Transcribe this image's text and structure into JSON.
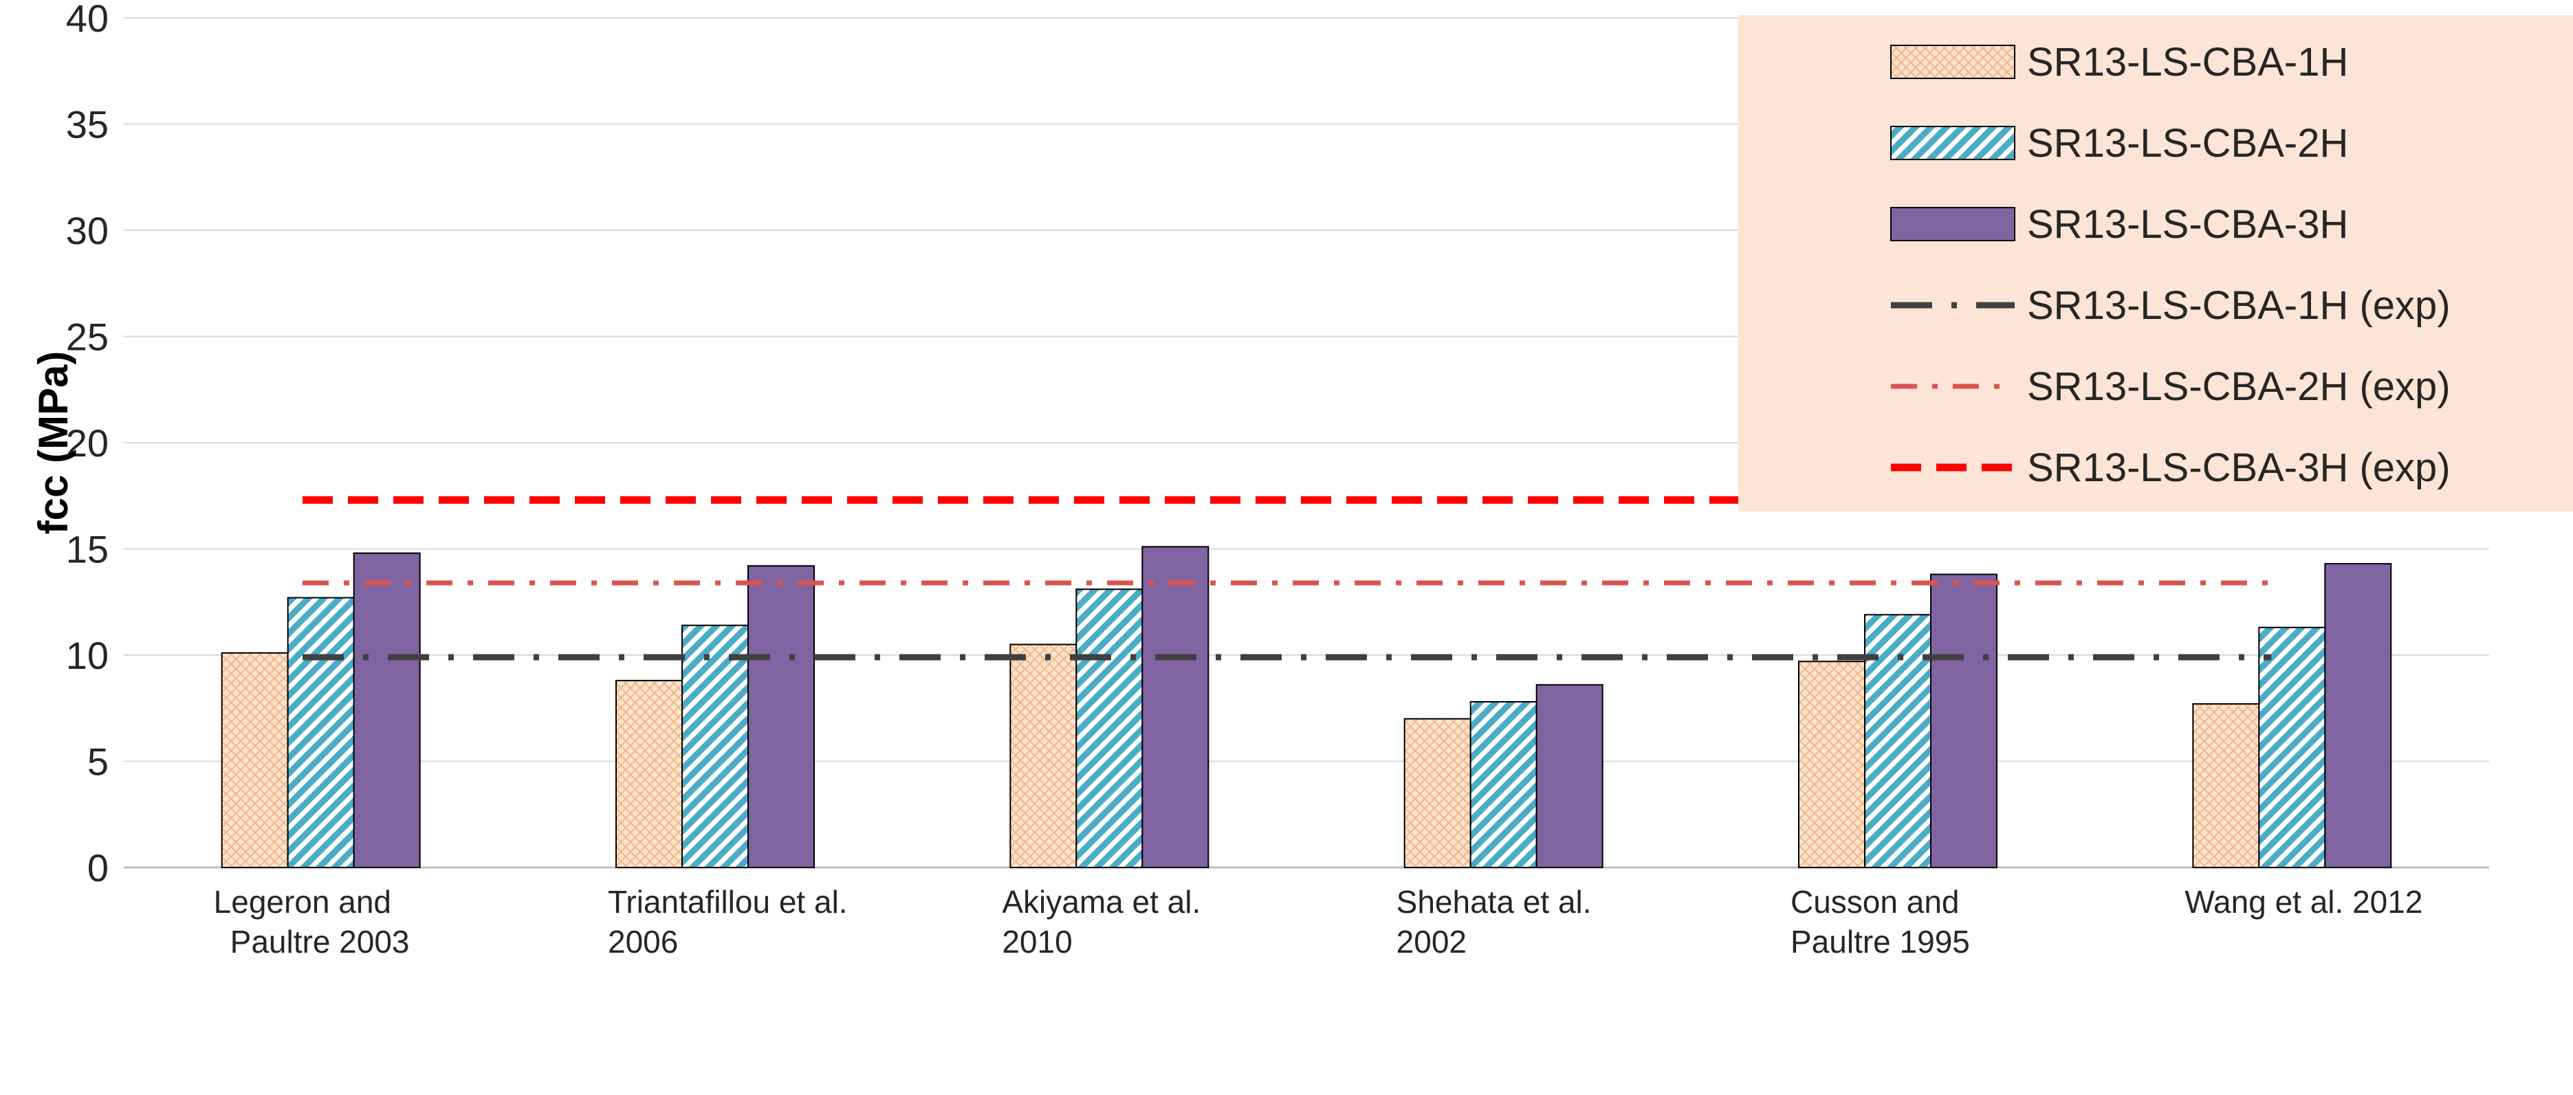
{
  "chart_data": {
    "type": "bar",
    "title": "",
    "xlabel": "",
    "ylabel": "fcc  (MPa)",
    "ylim": [
      0,
      40
    ],
    "yticks": [
      "0",
      "5",
      "10",
      "15",
      "20",
      "25",
      "30",
      "35",
      "40"
    ],
    "grid": true,
    "legend_position": "top-right",
    "categories": [
      [
        "Legeron and",
        "Paultre 2003"
      ],
      [
        "Triantafillou et al.",
        "2006"
      ],
      [
        "Akiyama et al.",
        "2010"
      ],
      [
        "Shehata et al.",
        "2002"
      ],
      [
        "Cusson and",
        "Paultre 1995"
      ],
      [
        "Wang et al. 2012"
      ]
    ],
    "series": [
      {
        "name": "SR13-LS-CBA-1H",
        "values": [
          10.1,
          8.8,
          10.5,
          7.0,
          9.7,
          7.7
        ],
        "color": "#fbd5b5",
        "pattern": "crosshatch"
      },
      {
        "name": "SR13-LS-CBA-2H",
        "values": [
          12.7,
          11.4,
          13.1,
          7.8,
          11.9,
          11.3
        ],
        "color": "#4bacc6",
        "pattern": "diagonal"
      },
      {
        "name": "SR13-LS-CBA-3H",
        "values": [
          14.8,
          14.2,
          15.1,
          8.6,
          13.8,
          14.3
        ],
        "color": "#8064a2",
        "pattern": "solid"
      }
    ],
    "reference_lines": [
      {
        "name": "SR13-LS-CBA-1H (exp)",
        "value": 9.9,
        "color": "#404040",
        "style": "long-dash-dot"
      },
      {
        "name": "SR13-LS-CBA-2H (exp)",
        "value": 13.4,
        "color": "#d9534f",
        "style": "dash-dot"
      },
      {
        "name": "SR13-LS-CBA-3H (exp)",
        "value": 17.3,
        "color": "#ff0000",
        "style": "dash"
      }
    ],
    "legend_background": "#fce4d6"
  }
}
